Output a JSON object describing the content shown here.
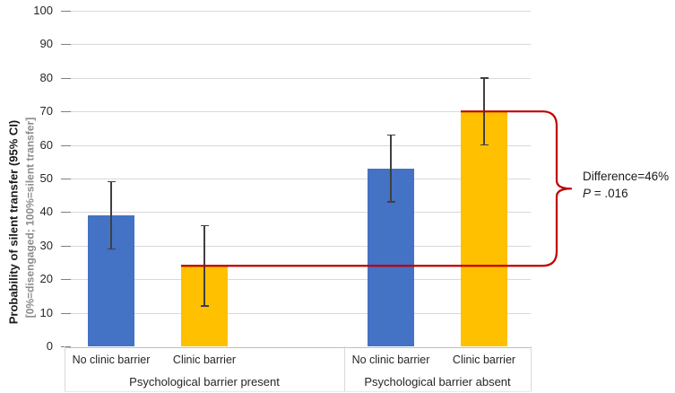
{
  "chart_data": {
    "type": "bar",
    "title": "",
    "ylabel": "Probability of silent transfer (95% CI)",
    "ylabel_sub": "[0%=disengaged; 100%=silent transfer]",
    "ylim": [
      0,
      100
    ],
    "yticks": [
      0,
      10,
      20,
      30,
      40,
      50,
      60,
      70,
      80,
      90,
      100
    ],
    "grid": true,
    "legend": "none",
    "groups": [
      {
        "label": "Psychological barrier present",
        "bars": [
          {
            "label": "No clinic barrier",
            "value": 39,
            "ci_low": 29,
            "ci_high": 49,
            "color": "#4472C4",
            "name": "present-no-clinic-barrier"
          },
          {
            "label": "Clinic barrier",
            "value": 24,
            "ci_low": 12,
            "ci_high": 36,
            "color": "#FFC000",
            "name": "present-clinic-barrier"
          }
        ]
      },
      {
        "label": "Psychological barrier absent",
        "bars": [
          {
            "label": "No clinic barrier",
            "value": 53,
            "ci_low": 43,
            "ci_high": 63,
            "color": "#4472C4",
            "name": "absent-no-clinic-barrier"
          },
          {
            "label": "Clinic barrier",
            "value": 70,
            "ci_low": 60,
            "ci_high": 80,
            "color": "#FFC000",
            "name": "absent-clinic-barrier"
          }
        ]
      }
    ],
    "annotation": {
      "line1": "Difference=46%",
      "p_label": "P",
      "p_rest": " = .016",
      "bracket_from_value": 70,
      "bracket_to_value": 24,
      "color": "#C00000"
    },
    "colors": {
      "bar_blue": "#4472C4",
      "bar_gold": "#FFC000",
      "bracket_red": "#C00000",
      "gridline": "#D9D9D9",
      "axis_line": "#BFBFBF",
      "tick_mark": "#7F7F7F",
      "error_bar": "#404040",
      "text": "#262626",
      "subtext": "#8C8C8C"
    }
  }
}
